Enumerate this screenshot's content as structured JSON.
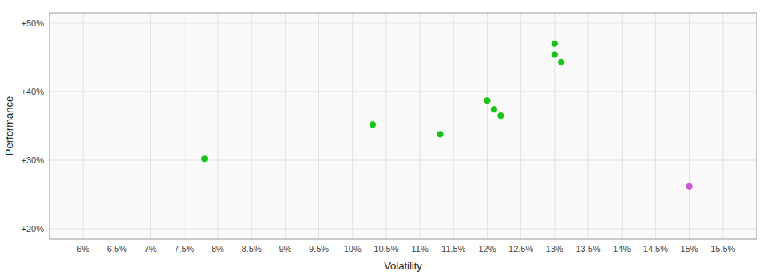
{
  "chart_data": {
    "type": "scatter",
    "xlabel": "Volatility",
    "ylabel": "Performance",
    "xlim": [
      0.055,
      0.16
    ],
    "ylim": [
      0.185,
      0.515
    ],
    "xticks": [
      {
        "value": 0.06,
        "label": "6%"
      },
      {
        "value": 0.065,
        "label": "6.5%"
      },
      {
        "value": 0.07,
        "label": "7%"
      },
      {
        "value": 0.075,
        "label": "7.5%"
      },
      {
        "value": 0.08,
        "label": "8%"
      },
      {
        "value": 0.085,
        "label": "8.5%"
      },
      {
        "value": 0.09,
        "label": "9%"
      },
      {
        "value": 0.095,
        "label": "9.5%"
      },
      {
        "value": 0.1,
        "label": "10%"
      },
      {
        "value": 0.105,
        "label": "10.5%"
      },
      {
        "value": 0.11,
        "label": "11%"
      },
      {
        "value": 0.115,
        "label": "11.5%"
      },
      {
        "value": 0.12,
        "label": "12%"
      },
      {
        "value": 0.125,
        "label": "12.5%"
      },
      {
        "value": 0.13,
        "label": "13%"
      },
      {
        "value": 0.135,
        "label": "13.5%"
      },
      {
        "value": 0.14,
        "label": "14%"
      },
      {
        "value": 0.145,
        "label": "14.5%"
      },
      {
        "value": 0.15,
        "label": "15%"
      },
      {
        "value": 0.155,
        "label": "15.5%"
      }
    ],
    "yticks": [
      {
        "value": 0.2,
        "label": "+20%"
      },
      {
        "value": 0.3,
        "label": "+30%"
      },
      {
        "value": 0.4,
        "label": "+40%"
      },
      {
        "value": 0.5,
        "label": "+50%"
      }
    ],
    "grid": true,
    "series": [
      {
        "color": "#00bb00",
        "x": [
          0.078,
          0.103,
          0.113,
          0.12,
          0.121,
          0.122,
          0.13,
          0.13,
          0.131
        ],
        "values": [
          0.302,
          0.352,
          0.338,
          0.387,
          0.374,
          0.365,
          0.47,
          0.454,
          0.443
        ]
      },
      {
        "color": "#cc44cc",
        "x": [
          0.15
        ],
        "values": [
          0.262
        ]
      }
    ]
  }
}
